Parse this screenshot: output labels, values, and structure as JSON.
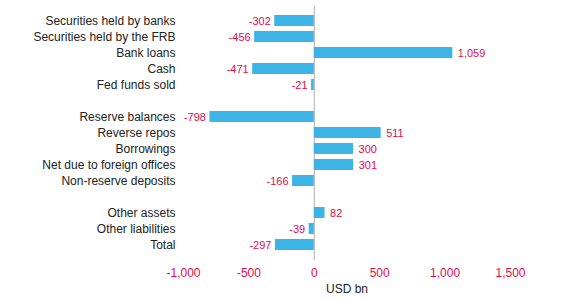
{
  "chart_data": {
    "type": "bar",
    "orientation": "horizontal",
    "categories": [
      "Securities held by banks",
      "Securities held by the FRB",
      "Bank loans",
      "Cash",
      "Fed funds sold",
      null,
      "Reserve balances",
      "Reverse repos",
      "Borrowings",
      "Net due to foreign offices",
      "Non-reserve deposits",
      null,
      "Other assets",
      "Other liabilities",
      "Total"
    ],
    "values": [
      -302,
      -456,
      1059,
      -471,
      -21,
      null,
      -798,
      511,
      300,
      301,
      -166,
      null,
      82,
      -39,
      -297
    ],
    "value_labels": [
      "-302",
      "-456",
      "1,059",
      "-471",
      "-21",
      null,
      "-798",
      "511",
      "300",
      "301",
      "-166",
      null,
      "82",
      "-39",
      "-297"
    ],
    "data_labels": true,
    "color": "#3cb4e5",
    "x_label": "USD bn",
    "xlim": [
      -1000,
      1500
    ],
    "xticks": [
      {
        "value": -1000,
        "label": "-1,000"
      },
      -500,
      0,
      500,
      {
        "value": 1000,
        "label": "1,000"
      },
      {
        "value": 1500,
        "label": "1,500"
      }
    ],
    "grid": false
  }
}
